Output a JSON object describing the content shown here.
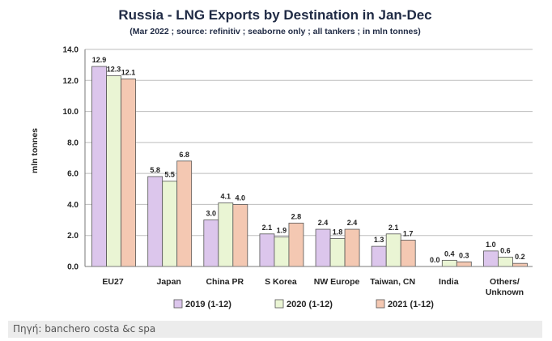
{
  "chart_data": {
    "type": "bar",
    "title": "Russia - LNG Exports by Destination in Jan-Dec",
    "subtitle": "(Mar 2022 ; source: refinitiv ; seaborne only ; all tankers ; in mln tonnes)",
    "ylabel": "mln tonnes",
    "xlabel": "",
    "ylim": [
      0,
      14
    ],
    "yticks": [
      "0.0",
      "2.0",
      "4.0",
      "6.0",
      "8.0",
      "10.0",
      "12.0",
      "14.0"
    ],
    "categories": [
      "EU27",
      "Japan",
      "China PR",
      "S Korea",
      "NW Europe",
      "Taiwan, CN",
      "India",
      "Others/ Unknown"
    ],
    "grid": true,
    "legend_position": "bottom",
    "series": [
      {
        "name": "2019 (1-12)",
        "color": "#dcc6ec",
        "values": [
          12.9,
          5.8,
          3.0,
          2.1,
          2.4,
          1.3,
          0.0,
          1.0
        ],
        "labels": [
          "12.9",
          "5.8",
          "3.0",
          "2.1",
          "2.4",
          "1.3",
          "0.0",
          "1.0"
        ]
      },
      {
        "name": "2020 (1-12)",
        "color": "#eaf5d4",
        "values": [
          12.3,
          5.5,
          4.1,
          1.9,
          1.8,
          2.1,
          0.4,
          0.6
        ],
        "labels": [
          "12.3",
          "5.5",
          "4.1",
          "1.9",
          "1.8",
          "2.1",
          "0.4",
          "0.6"
        ]
      },
      {
        "name": "2021 (1-12)",
        "color": "#f4c8b2",
        "values": [
          12.1,
          6.8,
          4.0,
          2.8,
          2.4,
          1.7,
          0.3,
          0.2
        ],
        "labels": [
          "12.1",
          "6.8",
          "4.0",
          "2.8",
          "2.4",
          "1.7",
          "0.3",
          "0.2"
        ]
      }
    ]
  },
  "footer": {
    "source": "Πηγή: banchero costa &c spa"
  }
}
